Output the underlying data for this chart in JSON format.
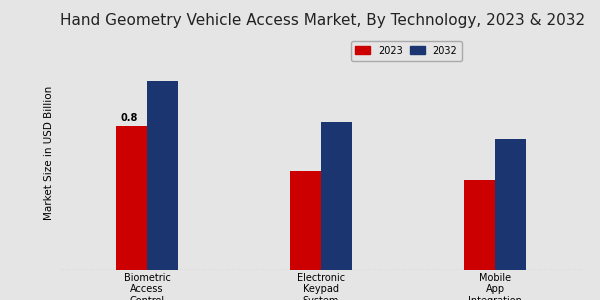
{
  "title": "Hand Geometry Vehicle Access Market, By Technology, 2023 & 2032",
  "ylabel": "Market Size in USD Billion",
  "categories": [
    "Biometric\nAccess\nControl",
    "Electronic\nKeypad\nSystem",
    "Mobile\nApp\nIntegration"
  ],
  "values_2023": [
    0.8,
    0.55,
    0.5
  ],
  "values_2032": [
    1.05,
    0.82,
    0.73
  ],
  "color_2023": "#cc0000",
  "color_2032": "#1a3570",
  "annotation_val": "0.8",
  "background_color": "#e5e5e5",
  "bar_width": 0.18,
  "legend_labels": [
    "2023",
    "2032"
  ],
  "title_fontsize": 11,
  "axis_label_fontsize": 7.5,
  "tick_fontsize": 7,
  "ylim": [
    0,
    1.3
  ],
  "bottom_stripe_color": "#cc0000"
}
